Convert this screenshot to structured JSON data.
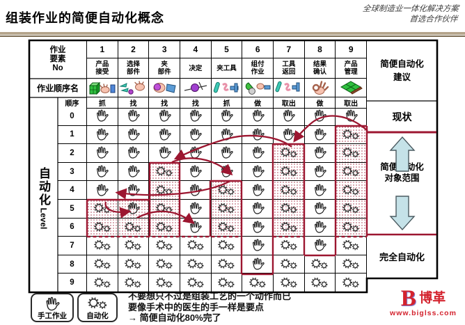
{
  "header": {
    "title": "组装作业的简便自动化概念",
    "tagline_line1": "全球制造业一体化解决方案",
    "tagline_line2": "首选合作伙伴"
  },
  "table": {
    "corner_label": "作业\n要素\nNo",
    "row_icons_label": "作业顺序名",
    "seq_label": "顺序",
    "level_axis_cjk": "自动化",
    "level_axis_latin": "Level",
    "advice_header": "简便自动化\n建议",
    "columns": [
      {
        "no": "1",
        "name": "产品\n接受",
        "action": "抓",
        "icon": "box-hand",
        "auto_from_level": 5,
        "dots_levels": [
          5,
          6
        ]
      },
      {
        "no": "2",
        "name": "选择\n部件",
        "action": "找",
        "icon": "parts-hand",
        "auto_from_level": 6,
        "dots_levels": [
          5,
          6
        ]
      },
      {
        "no": "3",
        "name": "夹\n部件",
        "action": "找",
        "icon": "hold-part",
        "auto_from_level": 3,
        "dots_levels": [
          3,
          6
        ]
      },
      {
        "no": "4",
        "name": "决定",
        "action": "找",
        "icon": "decide-ball",
        "auto_from_level": 7,
        "dots_levels": null
      },
      {
        "no": "5",
        "name": "夹工具",
        "action": "抓",
        "icon": "grab-tools",
        "auto_from_level": 4,
        "dots_levels": [
          4,
          6
        ]
      },
      {
        "no": "6",
        "name": "组付\n作业",
        "action": "做",
        "icon": "assemble-tools",
        "auto_from_level": 9,
        "dots_levels": null
      },
      {
        "no": "7",
        "name": "工具\n返回",
        "action": "取出",
        "icon": "return-tools",
        "auto_from_level": 2,
        "dots_levels": [
          2,
          6
        ]
      },
      {
        "no": "8",
        "name": "结果\n确认",
        "action": "做",
        "icon": "ok-hand",
        "auto_from_level": 8,
        "dots_levels": null
      },
      {
        "no": "9",
        "name": "产品\n管理",
        "action": "取出",
        "icon": "package",
        "auto_from_level": 1,
        "dots_levels": [
          1,
          6
        ]
      }
    ],
    "levels": [
      "0",
      "1",
      "2",
      "3",
      "4",
      "5",
      "6",
      "7",
      "8",
      "9"
    ],
    "cell_symbols": {
      "manual": "hand",
      "automated": "gears"
    },
    "right_labels": {
      "current": "现状",
      "target": "简便自动化\n对象范围",
      "full_auto": "完全自动化"
    }
  },
  "footer": {
    "legend": [
      {
        "label": "手工作业",
        "icon": "hand"
      },
      {
        "label": "自动化",
        "icon": "gears"
      }
    ],
    "note_lines": [
      "不要想只不过是组装工艺的一个动作而已",
      "要像手术中的医生的手一样是要点",
      "→ 简便自动化80%完了"
    ],
    "logo": {
      "letter": "B",
      "brand": "博革",
      "url": "www.biglss.com"
    }
  },
  "colors": {
    "accent_red": "#9c1630",
    "dotted_cell_dot": "#b85a6a",
    "block_arrow_fill": "#c5e2e8",
    "underline_tan": "#b5a58c",
    "logo_red": "#d4232e"
  }
}
